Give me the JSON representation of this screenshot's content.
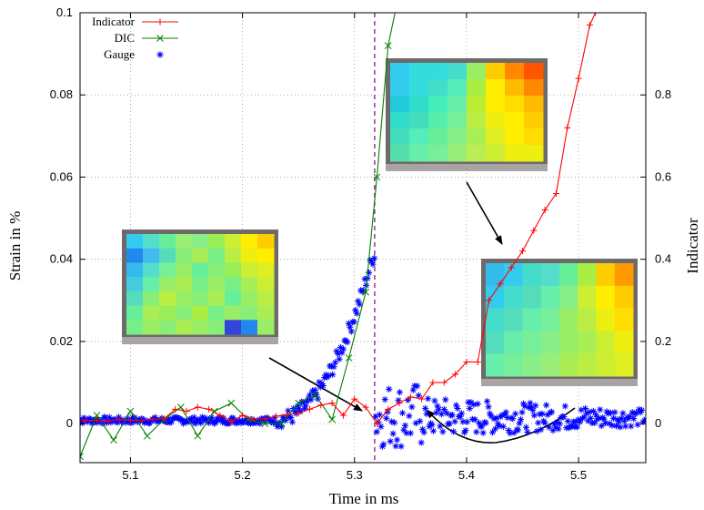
{
  "chart_data": {
    "type": "line",
    "xlabel": "Time in ms",
    "ylabel": "Strain in %",
    "y2label": "Indicator",
    "xlim": [
      5.055,
      5.56
    ],
    "ylim": [
      -0.0095,
      0.1
    ],
    "y2lim": [
      -0.095,
      1.0
    ],
    "x_ticks": [
      5.1,
      5.2,
      5.3,
      5.4,
      5.5
    ],
    "x_tick_labels": [
      "5.1",
      "5.2",
      "5.3",
      "5.4",
      "5.5"
    ],
    "y_ticks": [
      0,
      0.02,
      0.04,
      0.06,
      0.08,
      0.1
    ],
    "y_tick_labels": [
      "0",
      "0.02",
      "0.04",
      "0.06",
      "0.08",
      "0.1"
    ],
    "y2_ticks": [
      0,
      0.2,
      0.4,
      0.6,
      0.8
    ],
    "y2_tick_labels": [
      "0",
      "0.2",
      "0.4",
      "0.6",
      "0.8"
    ],
    "grid": true,
    "legend_position": "top-left",
    "vertical_line_x": 5.318,
    "series": [
      {
        "name": "Indicator",
        "axis": "right",
        "color": "#ff0000",
        "marker": "plus",
        "x": [
          5.05,
          5.06,
          5.07,
          5.08,
          5.09,
          5.1,
          5.11,
          5.12,
          5.13,
          5.14,
          5.15,
          5.16,
          5.17,
          5.18,
          5.19,
          5.2,
          5.21,
          5.22,
          5.23,
          5.24,
          5.25,
          5.26,
          5.27,
          5.28,
          5.29,
          5.3,
          5.31,
          5.32,
          5.33,
          5.34,
          5.35,
          5.36,
          5.37,
          5.38,
          5.39,
          5.4,
          5.41,
          5.42,
          5.43,
          5.44,
          5.45,
          5.46,
          5.47,
          5.48,
          5.49,
          5.5,
          5.51,
          5.515
        ],
        "y": [
          0.005,
          0.008,
          0.008,
          0.006,
          0.01,
          0.008,
          0.008,
          0.01,
          0.012,
          0.035,
          0.03,
          0.04,
          0.035,
          0.02,
          0.005,
          0.02,
          0.01,
          0.012,
          0.018,
          0.022,
          0.025,
          0.035,
          0.045,
          0.05,
          0.02,
          0.06,
          0.04,
          0.0,
          0.035,
          0.05,
          0.065,
          0.06,
          0.1,
          0.1,
          0.12,
          0.15,
          0.15,
          0.3,
          0.34,
          0.38,
          0.42,
          0.47,
          0.52,
          0.56,
          0.72,
          0.84,
          0.97,
          1.0
        ]
      },
      {
        "name": "DIC",
        "axis": "left",
        "color": "#008000",
        "marker": "cross",
        "x": [
          5.055,
          5.07,
          5.085,
          5.1,
          5.115,
          5.13,
          5.145,
          5.16,
          5.175,
          5.19,
          5.205,
          5.22,
          5.235,
          5.25,
          5.265,
          5.28,
          5.295,
          5.31,
          5.32,
          5.33,
          5.34
        ],
        "y": [
          -0.008,
          0.002,
          -0.004,
          0.003,
          -0.003,
          0.001,
          0.004,
          -0.003,
          0.003,
          0.005,
          0.001,
          0.0,
          0.0,
          0.005,
          0.007,
          0.001,
          0.016,
          0.032,
          0.06,
          0.092,
          0.105
        ]
      },
      {
        "name": "Gauge",
        "axis": "left",
        "color": "#0000ff",
        "marker": "star"
      }
    ]
  },
  "legend": [
    {
      "label": "Indicator"
    },
    {
      "label": "DIC"
    },
    {
      "label": "Gauge"
    }
  ],
  "insets": [
    {
      "name": "inset-top",
      "grid": [
        [
          "#33ccee",
          "#33dddd",
          "#33dddd",
          "#44ddcc",
          "#99ee66",
          "#ffcc00",
          "#ff8800",
          "#ff5500"
        ],
        [
          "#33ccee",
          "#33dddd",
          "#44ddcc",
          "#55eebb",
          "#aaee44",
          "#ffee00",
          "#ffbb00",
          "#ff8800"
        ],
        [
          "#22ccdd",
          "#33ddcc",
          "#44eebb",
          "#66eeaa",
          "#bbee33",
          "#ffee00",
          "#ffdd00",
          "#ffbb00"
        ],
        [
          "#33ddcc",
          "#44ddbb",
          "#55eeaa",
          "#77ee99",
          "#bbee44",
          "#eeee11",
          "#ffee00",
          "#ffcc00"
        ],
        [
          "#44ddbb",
          "#55eebb",
          "#66ee99",
          "#88ee88",
          "#aaee55",
          "#ddee22",
          "#ffee00",
          "#ffdd00"
        ],
        [
          "#55ddaa",
          "#66eeaa",
          "#77ee99",
          "#99ee77",
          "#bbee55",
          "#ccee33",
          "#eeee11",
          "#eeee11"
        ]
      ]
    },
    {
      "name": "inset-left",
      "grid": [
        [
          "#33ccee",
          "#55ddcc",
          "#66ee99",
          "#99ee77",
          "#88ee88",
          "#99ee55",
          "#ccee33",
          "#ffee00",
          "#ffcc00"
        ],
        [
          "#2288ee",
          "#44bbee",
          "#55ddbb",
          "#88ee77",
          "#aaee55",
          "#77ee88",
          "#bbee44",
          "#eeee11",
          "#ffee00"
        ],
        [
          "#33bbee",
          "#55ddcc",
          "#77ee99",
          "#99ee66",
          "#66ee99",
          "#88ee77",
          "#99ee55",
          "#ccee33",
          "#ddee22"
        ],
        [
          "#44ccdd",
          "#66eeaa",
          "#99ee66",
          "#aaee55",
          "#77ee88",
          "#99ee66",
          "#77ee88",
          "#aaee55",
          "#ccee33"
        ],
        [
          "#55ddbb",
          "#88ee77",
          "#bbee44",
          "#99ee66",
          "#88ee77",
          "#aaee55",
          "#66ee99",
          "#99ee66",
          "#bbee44"
        ],
        [
          "#66ee99",
          "#aaee55",
          "#99ee55",
          "#88ee77",
          "#aaee44",
          "#77ee88",
          "#99ee66",
          "#88ee77",
          "#aaee55"
        ],
        [
          "#77ee88",
          "#99ee66",
          "#88ee77",
          "#aaee55",
          "#99ee66",
          "#88ee77",
          "#3344dd",
          "#2288ee",
          "#99ee66"
        ]
      ]
    },
    {
      "name": "inset-right",
      "grid": [
        [
          "#33bbee",
          "#33ccee",
          "#44ddcc",
          "#55ddcc",
          "#66ee99",
          "#aaee44",
          "#ffcc00",
          "#ff9900"
        ],
        [
          "#33ccee",
          "#44ddcc",
          "#55ddbb",
          "#66eeaa",
          "#88ee88",
          "#ccee33",
          "#ffee00",
          "#ffcc00"
        ],
        [
          "#44ddcc",
          "#55ddbb",
          "#66eeaa",
          "#77ee99",
          "#99ee66",
          "#bbee44",
          "#eeee11",
          "#ffdd00"
        ],
        [
          "#55ddbb",
          "#66eeaa",
          "#77ee99",
          "#88ee88",
          "#99ee66",
          "#aaee55",
          "#ccee33",
          "#eeee11"
        ],
        [
          "#66eeaa",
          "#77ee99",
          "#88ee88",
          "#99ee77",
          "#aaee55",
          "#bbee44",
          "#ccee33",
          "#ddee22"
        ]
      ]
    }
  ]
}
